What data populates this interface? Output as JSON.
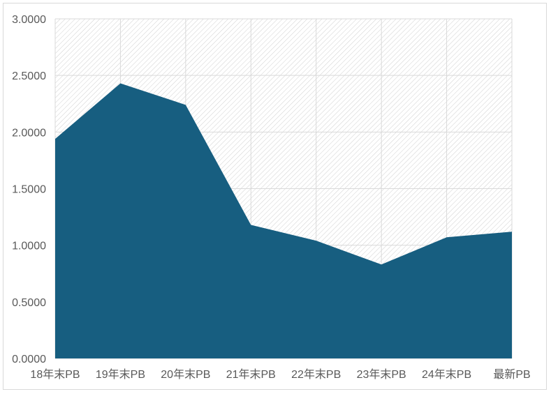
{
  "chart_data": {
    "type": "area",
    "title": "",
    "xlabel": "",
    "ylabel": "",
    "categories": [
      "18年末PB",
      "19年末PB",
      "20年末PB",
      "21年末PB",
      "22年末PB",
      "23年末PB",
      "24年末PB",
      "最新PB"
    ],
    "series": [
      {
        "values": [
          1.94,
          2.43,
          2.24,
          1.18,
          1.04,
          0.83,
          1.07,
          1.12
        ],
        "color": "#175e80"
      }
    ],
    "ylim": [
      0,
      3
    ],
    "yticks": [
      "0.0000",
      "0.5000",
      "1.0000",
      "1.5000",
      "2.0000",
      "2.5000",
      "3.0000"
    ],
    "ytick_values": [
      0,
      0.5,
      1,
      1.5,
      2,
      2.5,
      3
    ],
    "grid": true,
    "plot_area_pattern": "diagonal-hatch",
    "legend": "none"
  }
}
